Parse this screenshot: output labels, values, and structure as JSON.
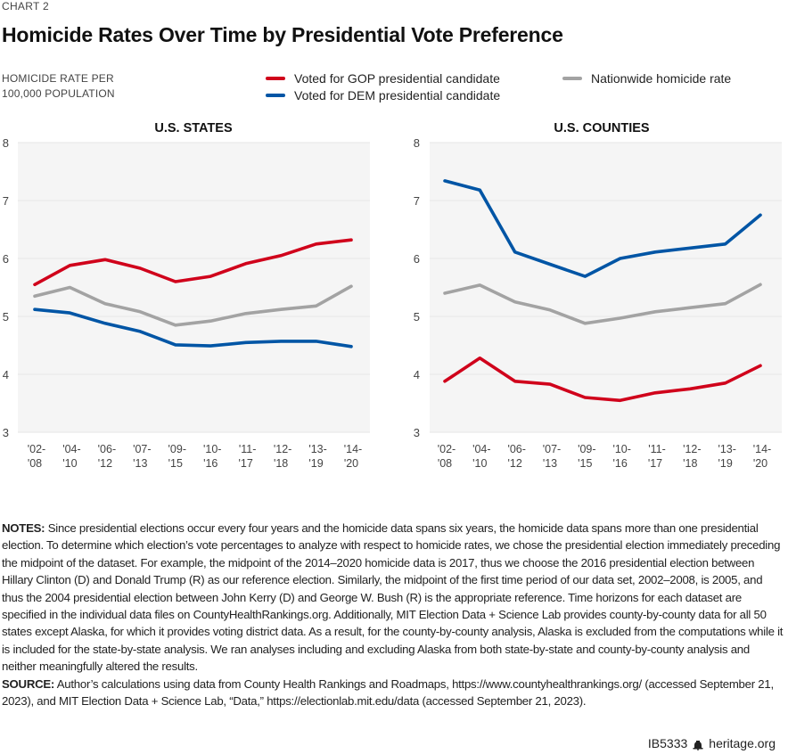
{
  "header": {
    "chart_label": "CHART 2",
    "title": "Homicide Rates Over Time by Presidential Vote Preference",
    "ylabel_line1": "HOMICIDE RATE PER",
    "ylabel_line2": "100,000 POPULATION"
  },
  "legend": {
    "gop": "Voted for GOP presidential candidate",
    "dem": "Voted for DEM presidential candidate",
    "nation": "Nationwide homicide rate"
  },
  "colors": {
    "gop": "#d0021b",
    "dem": "#0055a5",
    "nation": "#a3a3a3",
    "plot_bg": "#f5f5f5",
    "grid": "#e6e6e6"
  },
  "chart_data": [
    {
      "type": "line",
      "title": "U.S. STATES",
      "xlabel": "",
      "ylabel": "HOMICIDE RATE PER 100,000 POPULATION",
      "categories": [
        [
          "'02-",
          "'08"
        ],
        [
          "'04-",
          "'10"
        ],
        [
          "'06-",
          "'12"
        ],
        [
          "'07-",
          "'13"
        ],
        [
          "'09-",
          "'15"
        ],
        [
          "'10-",
          "'16"
        ],
        [
          "'11-",
          "'17"
        ],
        [
          "'12-",
          "'18"
        ],
        [
          "'13-",
          "'19"
        ],
        [
          "'14-",
          "'20"
        ]
      ],
      "ylim": [
        3,
        8
      ],
      "yticks": [
        3,
        4,
        5,
        6,
        7,
        8
      ],
      "grid": true,
      "series": [
        {
          "key": "gop",
          "name": "Voted for GOP presidential candidate",
          "values": [
            5.55,
            5.88,
            5.98,
            5.83,
            5.6,
            5.69,
            5.91,
            6.05,
            6.25,
            6.32
          ]
        },
        {
          "key": "nation",
          "name": "Nationwide homicide rate",
          "values": [
            5.35,
            5.5,
            5.22,
            5.08,
            4.85,
            4.92,
            5.05,
            5.12,
            5.18,
            5.52
          ]
        },
        {
          "key": "dem",
          "name": "Voted for DEM presidential candidate",
          "values": [
            5.12,
            5.06,
            4.88,
            4.74,
            4.51,
            4.49,
            4.55,
            4.57,
            4.57,
            4.48
          ]
        }
      ]
    },
    {
      "type": "line",
      "title": "U.S. COUNTIES",
      "xlabel": "",
      "ylabel": "HOMICIDE RATE PER 100,000 POPULATION",
      "categories": [
        [
          "'02-",
          "'08"
        ],
        [
          "'04-",
          "'10"
        ],
        [
          "'06-",
          "'12"
        ],
        [
          "'07-",
          "'13"
        ],
        [
          "'09-",
          "'15"
        ],
        [
          "'10-",
          "'16"
        ],
        [
          "'11-",
          "'17"
        ],
        [
          "'12-",
          "'18"
        ],
        [
          "'13-",
          "'19"
        ],
        [
          "'14-",
          "'20"
        ]
      ],
      "ylim": [
        3,
        8
      ],
      "yticks": [
        3,
        4,
        5,
        6,
        7,
        8
      ],
      "grid": true,
      "series": [
        {
          "key": "dem",
          "name": "Voted for DEM presidential candidate",
          "values": [
            7.34,
            7.18,
            6.11,
            5.9,
            5.69,
            6.0,
            6.11,
            6.18,
            6.25,
            6.75
          ]
        },
        {
          "key": "nation",
          "name": "Nationwide homicide rate",
          "values": [
            5.4,
            5.54,
            5.25,
            5.11,
            4.88,
            4.97,
            5.08,
            5.15,
            5.22,
            5.55
          ]
        },
        {
          "key": "gop",
          "name": "Voted for GOP presidential candidate",
          "values": [
            3.88,
            4.28,
            3.88,
            3.83,
            3.6,
            3.55,
            3.68,
            3.75,
            3.85,
            4.15
          ]
        }
      ]
    }
  ],
  "notes": {
    "notes_label": "NOTES:",
    "notes_text": " Since presidential elections occur every four years and the homicide data spans six years, the homicide data spans more than one presidential election. To determine which election’s vote percentages to analyze with respect to homicide rates, we chose the presidential election immediately preceding the midpoint of the dataset. For example, the midpoint of the 2014–2020 homicide data is 2017, thus we choose the 2016 presidential election between Hillary Clinton (D) and Donald Trump (R) as our reference election. Similarly, the midpoint of the first time period of our data set, 2002–2008, is 2005, and thus the 2004 presidential election between John Kerry (D) and George W. Bush (R) is the appropriate reference. Time horizons for each dataset are specified in the individual data files on CountyHealthRankings.org. Additionally, MIT Election Data + Science Lab provides county-by-county data for all 50 states except Alaska, for which it provides voting district data. As a result, for the county-by-county analysis, Alaska is excluded from the computations while it is included for the state-by-state analysis. We ran analyses including and excluding Alaska from both state-by-state and county-by-county analysis and neither meaningfully altered the results.",
    "source_label": "SOURCE:",
    "source_text": " Author’s calculations using data from County Health Rankings and Roadmaps, https://www.countyhealthrankings.org/ (accessed September 21, 2023), and MIT Election Data + Science Lab, “Data,” https://electionlab.mit.edu/data (accessed September 21, 2023)."
  },
  "footer": {
    "id": "IB5333",
    "icon": "liberty-bell-icon",
    "site": "heritage.org"
  }
}
